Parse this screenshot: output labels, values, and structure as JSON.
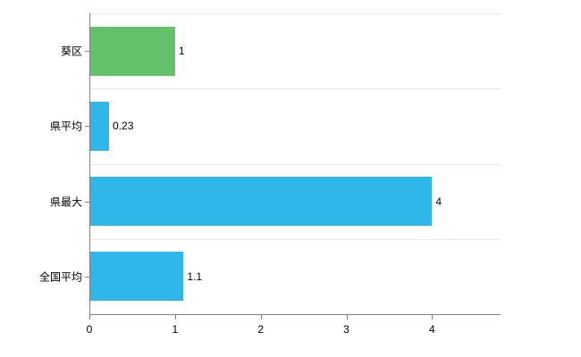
{
  "chart_data": {
    "type": "bar",
    "orientation": "horizontal",
    "title": "",
    "categories": [
      "葵区",
      "県平均",
      "県最大",
      "全国平均"
    ],
    "values": [
      1,
      0.23,
      4,
      1.1
    ],
    "value_labels": [
      "1",
      "0.23",
      "4",
      "1.1"
    ],
    "bar_colors": [
      "#63c16b",
      "#2fb7ea",
      "#2fb7ea",
      "#2fb7ea"
    ],
    "x_ticks": [
      "0",
      "1",
      "2",
      "3",
      "4"
    ],
    "x_tick_values": [
      0,
      1,
      2,
      3,
      4
    ],
    "xlim": [
      0,
      4.8
    ],
    "grid": "horizontal",
    "axis_color": "#808080",
    "grid_color": "#e8e8e8",
    "background": "#ffffff"
  }
}
